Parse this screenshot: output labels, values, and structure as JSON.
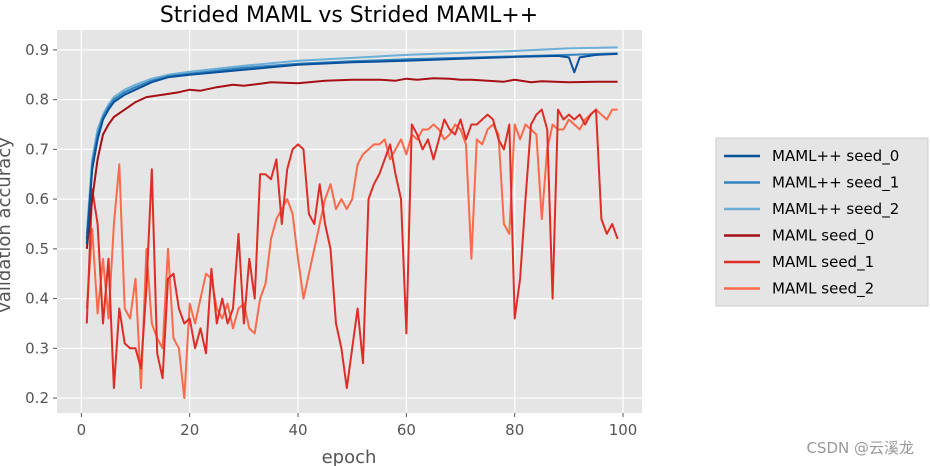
{
  "chart_data": {
    "type": "line",
    "title": "Strided MAML vs Strided MAML++",
    "xlabel": "epoch",
    "ylabel": "validation accuracy",
    "xlim": [
      -4.5,
      103.5
    ],
    "ylim": [
      0.17,
      0.94
    ],
    "xticks": [
      0,
      20,
      40,
      60,
      80,
      100
    ],
    "yticks": [
      0.2,
      0.3,
      0.4,
      0.5,
      0.6,
      0.7,
      0.8,
      0.9
    ],
    "grid": true,
    "legend": "right",
    "series": [
      {
        "name": "MAML++ seed_0",
        "color": "#08519c",
        "x": [
          1,
          2,
          3,
          4,
          5,
          6,
          8,
          10,
          13,
          16,
          20,
          25,
          30,
          35,
          40,
          50,
          60,
          70,
          80,
          88,
          90,
          91,
          92,
          95,
          99
        ],
        "y": [
          0.51,
          0.66,
          0.72,
          0.76,
          0.78,
          0.795,
          0.81,
          0.82,
          0.835,
          0.845,
          0.85,
          0.855,
          0.86,
          0.865,
          0.87,
          0.875,
          0.878,
          0.882,
          0.886,
          0.888,
          0.885,
          0.855,
          0.885,
          0.89,
          0.892
        ]
      },
      {
        "name": "MAML++ seed_1",
        "color": "#3182bd",
        "x": [
          1,
          2,
          3,
          4,
          5,
          6,
          8,
          10,
          13,
          16,
          20,
          25,
          30,
          35,
          40,
          50,
          60,
          70,
          80,
          90,
          99
        ],
        "y": [
          0.52,
          0.67,
          0.73,
          0.765,
          0.785,
          0.8,
          0.815,
          0.825,
          0.838,
          0.847,
          0.852,
          0.858,
          0.864,
          0.868,
          0.872,
          0.877,
          0.881,
          0.884,
          0.887,
          0.89,
          0.893
        ]
      },
      {
        "name": "MAML++ seed_2",
        "color": "#6baed6",
        "x": [
          1,
          2,
          3,
          4,
          5,
          6,
          8,
          10,
          13,
          16,
          20,
          25,
          30,
          35,
          40,
          50,
          60,
          70,
          80,
          90,
          99
        ],
        "y": [
          0.53,
          0.68,
          0.74,
          0.77,
          0.79,
          0.805,
          0.82,
          0.83,
          0.842,
          0.85,
          0.856,
          0.862,
          0.868,
          0.873,
          0.878,
          0.884,
          0.89,
          0.894,
          0.898,
          0.903,
          0.905
        ]
      },
      {
        "name": "MAML seed_0",
        "color": "#a50f15",
        "x": [
          1,
          2,
          3,
          4,
          5,
          6,
          8,
          10,
          12,
          15,
          18,
          20,
          22,
          25,
          28,
          30,
          33,
          35,
          40,
          45,
          50,
          55,
          58,
          60,
          62,
          65,
          68,
          70,
          72,
          75,
          78,
          80,
          83,
          85,
          90,
          95,
          99
        ],
        "y": [
          0.5,
          0.6,
          0.68,
          0.73,
          0.75,
          0.765,
          0.78,
          0.795,
          0.805,
          0.81,
          0.815,
          0.82,
          0.818,
          0.825,
          0.83,
          0.828,
          0.832,
          0.835,
          0.833,
          0.838,
          0.84,
          0.84,
          0.838,
          0.842,
          0.84,
          0.843,
          0.842,
          0.84,
          0.84,
          0.838,
          0.836,
          0.84,
          0.835,
          0.837,
          0.835,
          0.836,
          0.836
        ]
      },
      {
        "name": "MAML seed_1",
        "color": "#de2d26",
        "x": [
          1,
          2,
          3,
          4,
          5,
          6,
          7,
          8,
          9,
          10,
          11,
          12,
          13,
          14,
          15,
          16,
          17,
          18,
          19,
          20,
          21,
          22,
          23,
          24,
          25,
          26,
          27,
          28,
          29,
          30,
          31,
          32,
          33,
          34,
          35,
          36,
          37,
          38,
          39,
          40,
          41,
          42,
          43,
          44,
          45,
          46,
          47,
          48,
          49,
          50,
          51,
          52,
          53,
          54,
          55,
          56,
          57,
          58,
          59,
          60,
          61,
          62,
          63,
          64,
          65,
          66,
          67,
          68,
          69,
          70,
          71,
          72,
          73,
          74,
          75,
          76,
          77,
          78,
          79,
          80,
          81,
          82,
          83,
          84,
          85,
          86,
          87,
          88,
          89,
          90,
          91,
          92,
          93,
          94,
          95,
          96,
          97,
          98,
          99
        ],
        "y": [
          0.35,
          0.62,
          0.55,
          0.35,
          0.48,
          0.22,
          0.38,
          0.31,
          0.3,
          0.3,
          0.26,
          0.42,
          0.66,
          0.29,
          0.24,
          0.44,
          0.45,
          0.38,
          0.35,
          0.36,
          0.3,
          0.34,
          0.29,
          0.46,
          0.35,
          0.4,
          0.35,
          0.38,
          0.53,
          0.35,
          0.48,
          0.4,
          0.65,
          0.65,
          0.64,
          0.68,
          0.55,
          0.66,
          0.7,
          0.71,
          0.7,
          0.57,
          0.55,
          0.63,
          0.55,
          0.5,
          0.35,
          0.3,
          0.22,
          0.3,
          0.38,
          0.27,
          0.6,
          0.63,
          0.65,
          0.68,
          0.71,
          0.65,
          0.6,
          0.33,
          0.75,
          0.73,
          0.7,
          0.72,
          0.68,
          0.72,
          0.76,
          0.74,
          0.73,
          0.76,
          0.72,
          0.75,
          0.75,
          0.76,
          0.77,
          0.76,
          0.72,
          0.7,
          0.75,
          0.36,
          0.44,
          0.6,
          0.75,
          0.77,
          0.78,
          0.74,
          0.4,
          0.78,
          0.76,
          0.77,
          0.76,
          0.77,
          0.75,
          0.77,
          0.78,
          0.56,
          0.53,
          0.55,
          0.52
        ]
      },
      {
        "name": "MAML seed_2",
        "color": "#fb6a4a",
        "x": [
          1,
          2,
          3,
          4,
          5,
          6,
          7,
          8,
          9,
          10,
          11,
          12,
          13,
          14,
          15,
          16,
          17,
          18,
          19,
          20,
          21,
          22,
          23,
          24,
          25,
          26,
          27,
          28,
          29,
          30,
          31,
          32,
          33,
          34,
          35,
          36,
          37,
          38,
          39,
          40,
          41,
          42,
          43,
          44,
          45,
          46,
          47,
          48,
          49,
          50,
          51,
          52,
          53,
          54,
          55,
          56,
          57,
          58,
          59,
          60,
          61,
          62,
          63,
          64,
          65,
          66,
          67,
          68,
          69,
          70,
          71,
          72,
          73,
          74,
          75,
          76,
          77,
          78,
          79,
          80,
          81,
          82,
          83,
          84,
          85,
          86,
          87,
          88,
          89,
          90,
          91,
          92,
          93,
          94,
          95,
          96,
          97,
          98,
          99
        ],
        "y": [
          0.38,
          0.54,
          0.37,
          0.48,
          0.36,
          0.55,
          0.67,
          0.38,
          0.36,
          0.44,
          0.22,
          0.5,
          0.35,
          0.32,
          0.3,
          0.5,
          0.32,
          0.3,
          0.2,
          0.39,
          0.35,
          0.4,
          0.45,
          0.44,
          0.38,
          0.36,
          0.39,
          0.34,
          0.38,
          0.39,
          0.34,
          0.33,
          0.4,
          0.43,
          0.52,
          0.56,
          0.58,
          0.6,
          0.57,
          0.48,
          0.4,
          0.45,
          0.5,
          0.55,
          0.6,
          0.63,
          0.58,
          0.6,
          0.58,
          0.6,
          0.67,
          0.69,
          0.7,
          0.71,
          0.71,
          0.72,
          0.68,
          0.7,
          0.72,
          0.69,
          0.73,
          0.72,
          0.74,
          0.74,
          0.75,
          0.74,
          0.72,
          0.73,
          0.75,
          0.74,
          0.71,
          0.48,
          0.72,
          0.71,
          0.74,
          0.75,
          0.73,
          0.55,
          0.53,
          0.75,
          0.72,
          0.75,
          0.74,
          0.73,
          0.56,
          0.7,
          0.75,
          0.74,
          0.74,
          0.76,
          0.75,
          0.74,
          0.76,
          0.77,
          0.78,
          0.77,
          0.76,
          0.78,
          0.78
        ]
      }
    ]
  },
  "watermark": "CSDN @云溪龙"
}
